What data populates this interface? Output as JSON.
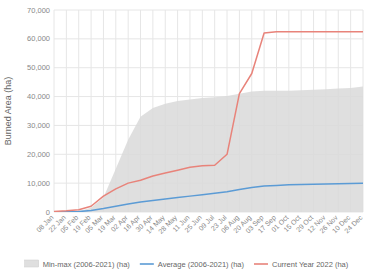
{
  "chart_data": {
    "type": "line",
    "y_label": "Burned Area (ha)",
    "categories": [
      "08 Jan",
      "22 Jan",
      "05 Feb",
      "19 Feb",
      "05 Mar",
      "19 Mar",
      "02 Apr",
      "16 Apr",
      "30 Apr",
      "14 May",
      "28 May",
      "11 Jun",
      "25 Jun",
      "09 Jul",
      "23 Jul",
      "06 Aug",
      "20 Aug",
      "03 Sep",
      "17 Sep",
      "01 Oct",
      "15 Oct",
      "29 Oct",
      "12 Nov",
      "26 Nov",
      "10 Dec",
      "24 Dec"
    ],
    "series": [
      {
        "name": "Min-max (2006-2021) (ha)",
        "type": "area",
        "color": "#d9d9d9",
        "low": [
          0,
          0,
          0,
          0,
          0,
          0,
          0,
          0,
          0,
          0,
          0,
          0,
          0,
          0,
          0,
          0,
          0,
          0,
          0,
          0,
          0,
          0,
          0,
          0,
          0,
          0
        ],
        "high": [
          50,
          100,
          300,
          1500,
          5000,
          15000,
          25000,
          33000,
          36000,
          37500,
          38500,
          39000,
          39500,
          39800,
          40200,
          41000,
          41800,
          42000,
          42000,
          42000,
          42200,
          42400,
          42500,
          42800,
          43000,
          43500
        ]
      },
      {
        "name": "Average (2006-2021) (ha)",
        "type": "line",
        "color": "#5b9bd5",
        "values": [
          20,
          50,
          150,
          500,
          1200,
          2000,
          2800,
          3500,
          4000,
          4500,
          5000,
          5500,
          6000,
          6500,
          7000,
          7800,
          8500,
          9000,
          9200,
          9400,
          9500,
          9600,
          9700,
          9800,
          9900,
          10000
        ]
      },
      {
        "name": "Current Year 2022 (ha)",
        "type": "line",
        "color": "#e8837a",
        "values": [
          200,
          400,
          800,
          2000,
          5500,
          8000,
          10000,
          11000,
          12500,
          13500,
          14500,
          15500,
          16000,
          16200,
          20000,
          41000,
          48000,
          62000,
          62500,
          62500,
          62500,
          62500,
          62500,
          62500,
          62500,
          62500
        ]
      }
    ],
    "ylim": [
      0,
      70000
    ],
    "yticks": [
      0,
      {
        "value": 10000,
        "label": "10,000"
      },
      {
        "value": 20000,
        "label": "20,000"
      },
      {
        "value": 30000,
        "label": "30,000"
      },
      {
        "value": 40000,
        "label": "40,000"
      },
      {
        "value": 50000,
        "label": "50,000"
      },
      {
        "value": 60000,
        "label": "60,000"
      },
      {
        "value": 70000,
        "label": "70,000"
      }
    ],
    "grid": true,
    "legend": "bottom"
  }
}
